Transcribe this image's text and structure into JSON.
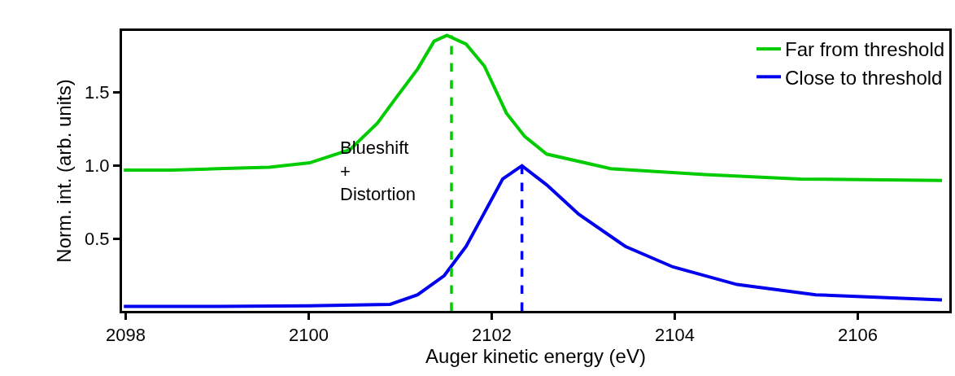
{
  "chart_data": {
    "type": "line",
    "xlabel": "Auger kinetic energy (eV)",
    "ylabel": "Norm. int. (arb. units)",
    "xlim": [
      2097.96,
      2107.0
    ],
    "ylim": [
      0.01,
      1.92
    ],
    "xticks": [
      2098,
      2100,
      2102,
      2104,
      2106
    ],
    "yticks": [
      0.5,
      {
        "value": 1.0,
        "label": "1.0"
      },
      1.5
    ],
    "grid": false,
    "legend": "top right",
    "line_style": "solid",
    "marker": "none",
    "series": [
      {
        "name": "Far from threshold",
        "color": "#00cc00",
        "x": [
          2097.98,
          2098.5,
          2099.0,
          2099.57,
          2100.01,
          2100.45,
          2100.75,
          2100.95,
          2101.19,
          2101.37,
          2101.51,
          2101.72,
          2101.92,
          2102.16,
          2102.36,
          2102.6,
          2103.3,
          2104.33,
          2105.37,
          2106.92
        ],
        "values": [
          0.97,
          0.97,
          0.98,
          0.99,
          1.02,
          1.11,
          1.29,
          1.46,
          1.66,
          1.85,
          1.89,
          1.83,
          1.68,
          1.36,
          1.2,
          1.08,
          0.98,
          0.94,
          0.91,
          0.9
        ]
      },
      {
        "name": "Close to threshold",
        "color": "#0000ee",
        "x": [
          2097.98,
          2099.0,
          2100.0,
          2100.89,
          2101.19,
          2101.48,
          2101.72,
          2101.92,
          2102.12,
          2102.33,
          2102.6,
          2102.95,
          2103.46,
          2103.98,
          2104.68,
          2105.54,
          2106.92
        ],
        "values": [
          0.04,
          0.04,
          0.045,
          0.055,
          0.12,
          0.25,
          0.45,
          0.68,
          0.91,
          1.0,
          0.87,
          0.67,
          0.45,
          0.31,
          0.19,
          0.12,
          0.085
        ]
      }
    ],
    "ref_lines": [
      {
        "axis": "x",
        "value": 2101.56,
        "color": "#00cc00",
        "line_style": "dashed"
      },
      {
        "axis": "x",
        "value": 2102.33,
        "color": "#0000ee",
        "line_style": "dashed"
      }
    ],
    "annotations": [
      "Blueshift\n+\nDistortion"
    ]
  }
}
